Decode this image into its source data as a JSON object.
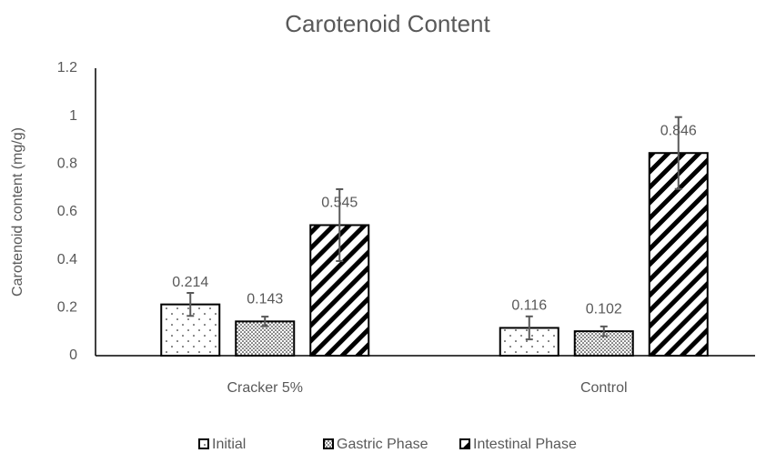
{
  "chart_data": {
    "type": "bar",
    "title": "Carotenoid Content",
    "y_label": "Carotenoid content (mg/g)",
    "categories": [
      "Cracker 5%",
      "Control"
    ],
    "series": [
      {
        "name": "Initial",
        "color": "#000000",
        "values": [
          0.214,
          0.116
        ],
        "errors": [
          0.048,
          0.048
        ]
      },
      {
        "name": "Gastric Phase",
        "color": "#000000",
        "values": [
          0.143,
          0.102
        ],
        "errors": [
          0.02,
          0.02
        ]
      },
      {
        "name": "Intestinal Phase",
        "color": "#000000",
        "values": [
          0.545,
          0.846
        ],
        "errors": [
          0.15,
          0.15
        ]
      }
    ],
    "ylim": [
      0,
      1.2
    ],
    "yticks": [
      0,
      0.2,
      0.4,
      0.6,
      0.8,
      1,
      1.2
    ],
    "grid": false,
    "legend": "bottom"
  }
}
